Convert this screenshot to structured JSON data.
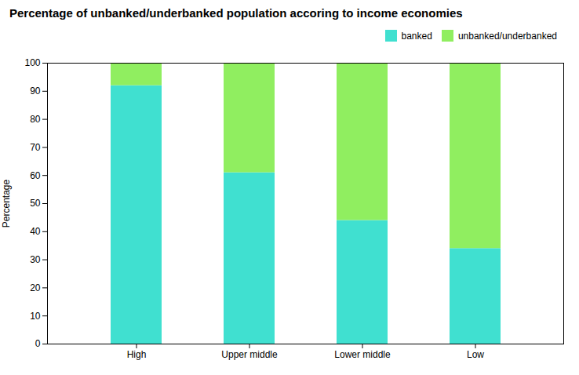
{
  "chart_data": {
    "type": "bar",
    "title": "Percentage of unbanked/underbanked population accoring to income economies",
    "categories": [
      "High",
      "Upper middle",
      "Lower middle",
      "Low"
    ],
    "series": [
      {
        "name": "banked",
        "color": "#40E0D0",
        "values": [
          92,
          61,
          44,
          34
        ]
      },
      {
        "name": "unbanked/underbanked",
        "color": "#90EE60",
        "values": [
          8,
          39,
          56,
          66
        ]
      }
    ],
    "ylabel": "Percentage",
    "ylim": [
      0,
      100
    ],
    "yticks": [
      0,
      10,
      20,
      30,
      40,
      50,
      60,
      70,
      80,
      90,
      100
    ],
    "stacked": true,
    "grid": false,
    "legend": "upper right"
  }
}
